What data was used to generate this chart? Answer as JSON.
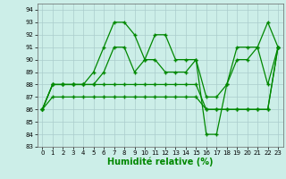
{
  "xlabel": "Humidité relative (%)",
  "background_color": "#cceee8",
  "grid_color": "#aacccc",
  "line_color": "#008800",
  "xlim": [
    -0.5,
    23.5
  ],
  "ylim": [
    83,
    94.5
  ],
  "yticks": [
    83,
    84,
    85,
    86,
    87,
    88,
    89,
    90,
    91,
    92,
    93,
    94
  ],
  "xticks": [
    0,
    1,
    2,
    3,
    4,
    5,
    6,
    7,
    8,
    9,
    10,
    11,
    12,
    13,
    14,
    15,
    16,
    17,
    18,
    19,
    20,
    21,
    22,
    23
  ],
  "series": [
    [
      86,
      88,
      88,
      88,
      88,
      89,
      91,
      93,
      93,
      92,
      90,
      92,
      92,
      90,
      90,
      90,
      84,
      84,
      88,
      91,
      91,
      91,
      93,
      91
    ],
    [
      86,
      88,
      88,
      88,
      88,
      88,
      89,
      91,
      91,
      89,
      90,
      90,
      89,
      89,
      89,
      90,
      87,
      87,
      88,
      90,
      90,
      91,
      88,
      91
    ],
    [
      86,
      88,
      88,
      88,
      88,
      88,
      88,
      88,
      88,
      88,
      88,
      88,
      88,
      88,
      88,
      88,
      86,
      86,
      86,
      86,
      86,
      86,
      86,
      91
    ],
    [
      86,
      87,
      87,
      87,
      87,
      87,
      87,
      87,
      87,
      87,
      87,
      87,
      87,
      87,
      87,
      87,
      86,
      86,
      86,
      86,
      86,
      86,
      86,
      91
    ]
  ]
}
